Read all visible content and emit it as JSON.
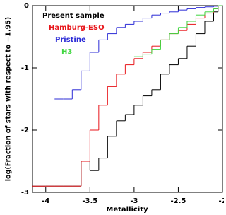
{
  "chart_data": {
    "type": "step",
    "xlabel": "Metallicity",
    "ylabel": "log(Fraction of stars with respect to −1.95)",
    "x": [
      -4.15,
      -4.0,
      -3.9,
      -3.8,
      -3.7,
      -3.6,
      -3.5,
      -3.4,
      -3.3,
      -3.2,
      -3.1,
      -3.0,
      -2.9,
      -2.8,
      -2.7,
      -2.6,
      -2.5,
      -2.4,
      -2.3,
      -2.2,
      -2.1,
      -2.05
    ],
    "series": [
      {
        "name": "Present sample",
        "color": "#000000",
        "values": [
          -2.9,
          -2.9,
          -2.9,
          -2.9,
          -2.9,
          -2.5,
          -2.65,
          -2.45,
          -2.1,
          -1.85,
          -1.75,
          -1.6,
          -1.45,
          -1.35,
          -1.1,
          -0.95,
          -0.85,
          -0.65,
          -0.45,
          -0.25,
          -0.1,
          0
        ]
      },
      {
        "name": "Hamburg-ESO",
        "color": "#e8161b",
        "values": [
          -2.9,
          -2.9,
          -2.9,
          -2.9,
          -2.9,
          -2.5,
          -2.0,
          -1.6,
          -1.3,
          -1.1,
          -0.95,
          -0.85,
          -0.75,
          -0.65,
          -0.55,
          -0.45,
          -0.4,
          -0.3,
          -0.2,
          -0.12,
          -0.05,
          0
        ]
      },
      {
        "name": "Pristine",
        "color": "#2b2bd6",
        "values": [
          null,
          null,
          -1.5,
          -1.5,
          -1.35,
          -1.05,
          -0.75,
          -0.55,
          -0.45,
          -0.35,
          -0.3,
          -0.25,
          -0.2,
          -0.15,
          -0.12,
          -0.1,
          -0.07,
          -0.05,
          -0.03,
          -0.02,
          -0.01,
          0
        ]
      },
      {
        "name": "H3",
        "color": "#3fd63f",
        "values": [
          null,
          null,
          null,
          null,
          null,
          null,
          null,
          null,
          null,
          null,
          null,
          -0.82,
          -0.78,
          -0.7,
          -0.55,
          -0.45,
          -0.35,
          -0.25,
          -0.15,
          -0.1,
          -0.05,
          0
        ]
      }
    ],
    "xlim": [
      -4.15,
      -2
    ],
    "ylim": [
      -3,
      0
    ],
    "xticks": [
      -4,
      -3.5,
      -3,
      -2.5,
      -2
    ],
    "yticks": [
      -3,
      -2,
      -1,
      0
    ],
    "legend": "top-left"
  }
}
